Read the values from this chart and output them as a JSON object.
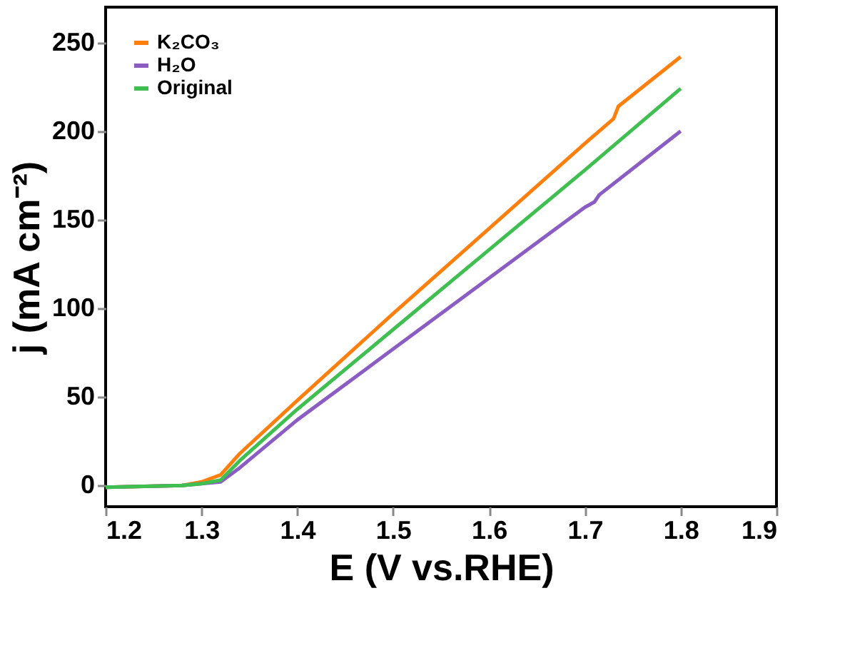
{
  "chart_data": {
    "type": "line",
    "xlabel": "E (V vs.RHE)",
    "ylabel": "j (mA cm⁻²)",
    "xlim": [
      1.2,
      1.9
    ],
    "xticks": [
      1.2,
      1.3,
      1.4,
      1.5,
      1.6,
      1.7,
      1.8,
      1.9
    ],
    "ylim": [
      -12,
      270
    ],
    "yticks": [
      0,
      50,
      100,
      150,
      200,
      250
    ],
    "grid": false,
    "legend": "top left",
    "marker": "none",
    "line_style": "solid",
    "series": [
      {
        "name": "K₂CO₃",
        "color": "#ff7f0e",
        "x": [
          1.2,
          1.28,
          1.3,
          1.32,
          1.34,
          1.4,
          1.5,
          1.6,
          1.7,
          1.73,
          1.735,
          1.8
        ],
        "values": [
          -1,
          0,
          2,
          6,
          18,
          48,
          97,
          145,
          193,
          207,
          214,
          242
        ]
      },
      {
        "name": "H₂O",
        "color": "#8a5cc4",
        "x": [
          1.2,
          1.28,
          1.3,
          1.32,
          1.34,
          1.4,
          1.5,
          1.6,
          1.7,
          1.71,
          1.715,
          1.8
        ],
        "values": [
          -1,
          0,
          1,
          2,
          10,
          37,
          77,
          117,
          157,
          160,
          164,
          200
        ]
      },
      {
        "name": "Original",
        "color": "#3fbf4f",
        "x": [
          1.2,
          1.28,
          1.3,
          1.32,
          1.34,
          1.4,
          1.5,
          1.6,
          1.7,
          1.8
        ],
        "values": [
          -1,
          0,
          1,
          3,
          14,
          43,
          88,
          133,
          178,
          224
        ]
      }
    ]
  }
}
